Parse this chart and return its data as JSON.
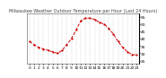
{
  "title": "Milwaukee Weather Outdoor Temperature per Hour (Last 24 Hours)",
  "hours": [
    0,
    1,
    2,
    3,
    4,
    5,
    6,
    7,
    8,
    9,
    10,
    11,
    12,
    13,
    14,
    15,
    16,
    17,
    18,
    19,
    20,
    21,
    22,
    23
  ],
  "temps": [
    38,
    36,
    34,
    33,
    32,
    31,
    30,
    32,
    36,
    40,
    46,
    52,
    54,
    54,
    53,
    51,
    50,
    47,
    43,
    38,
    34,
    31,
    29,
    29
  ],
  "line_color": "#cc0000",
  "marker": "o",
  "marker_size": 1.2,
  "line_style": "--",
  "line_width": 0.7,
  "bg_color": "#ffffff",
  "grid_color": "#999999",
  "y_ticks": [
    25,
    30,
    35,
    40,
    45,
    50,
    55
  ],
  "ylim": [
    23,
    57
  ],
  "xlim": [
    -0.5,
    23.5
  ],
  "tick_label_size": 3.2,
  "title_fontsize": 3.5,
  "title_color": "#444444"
}
